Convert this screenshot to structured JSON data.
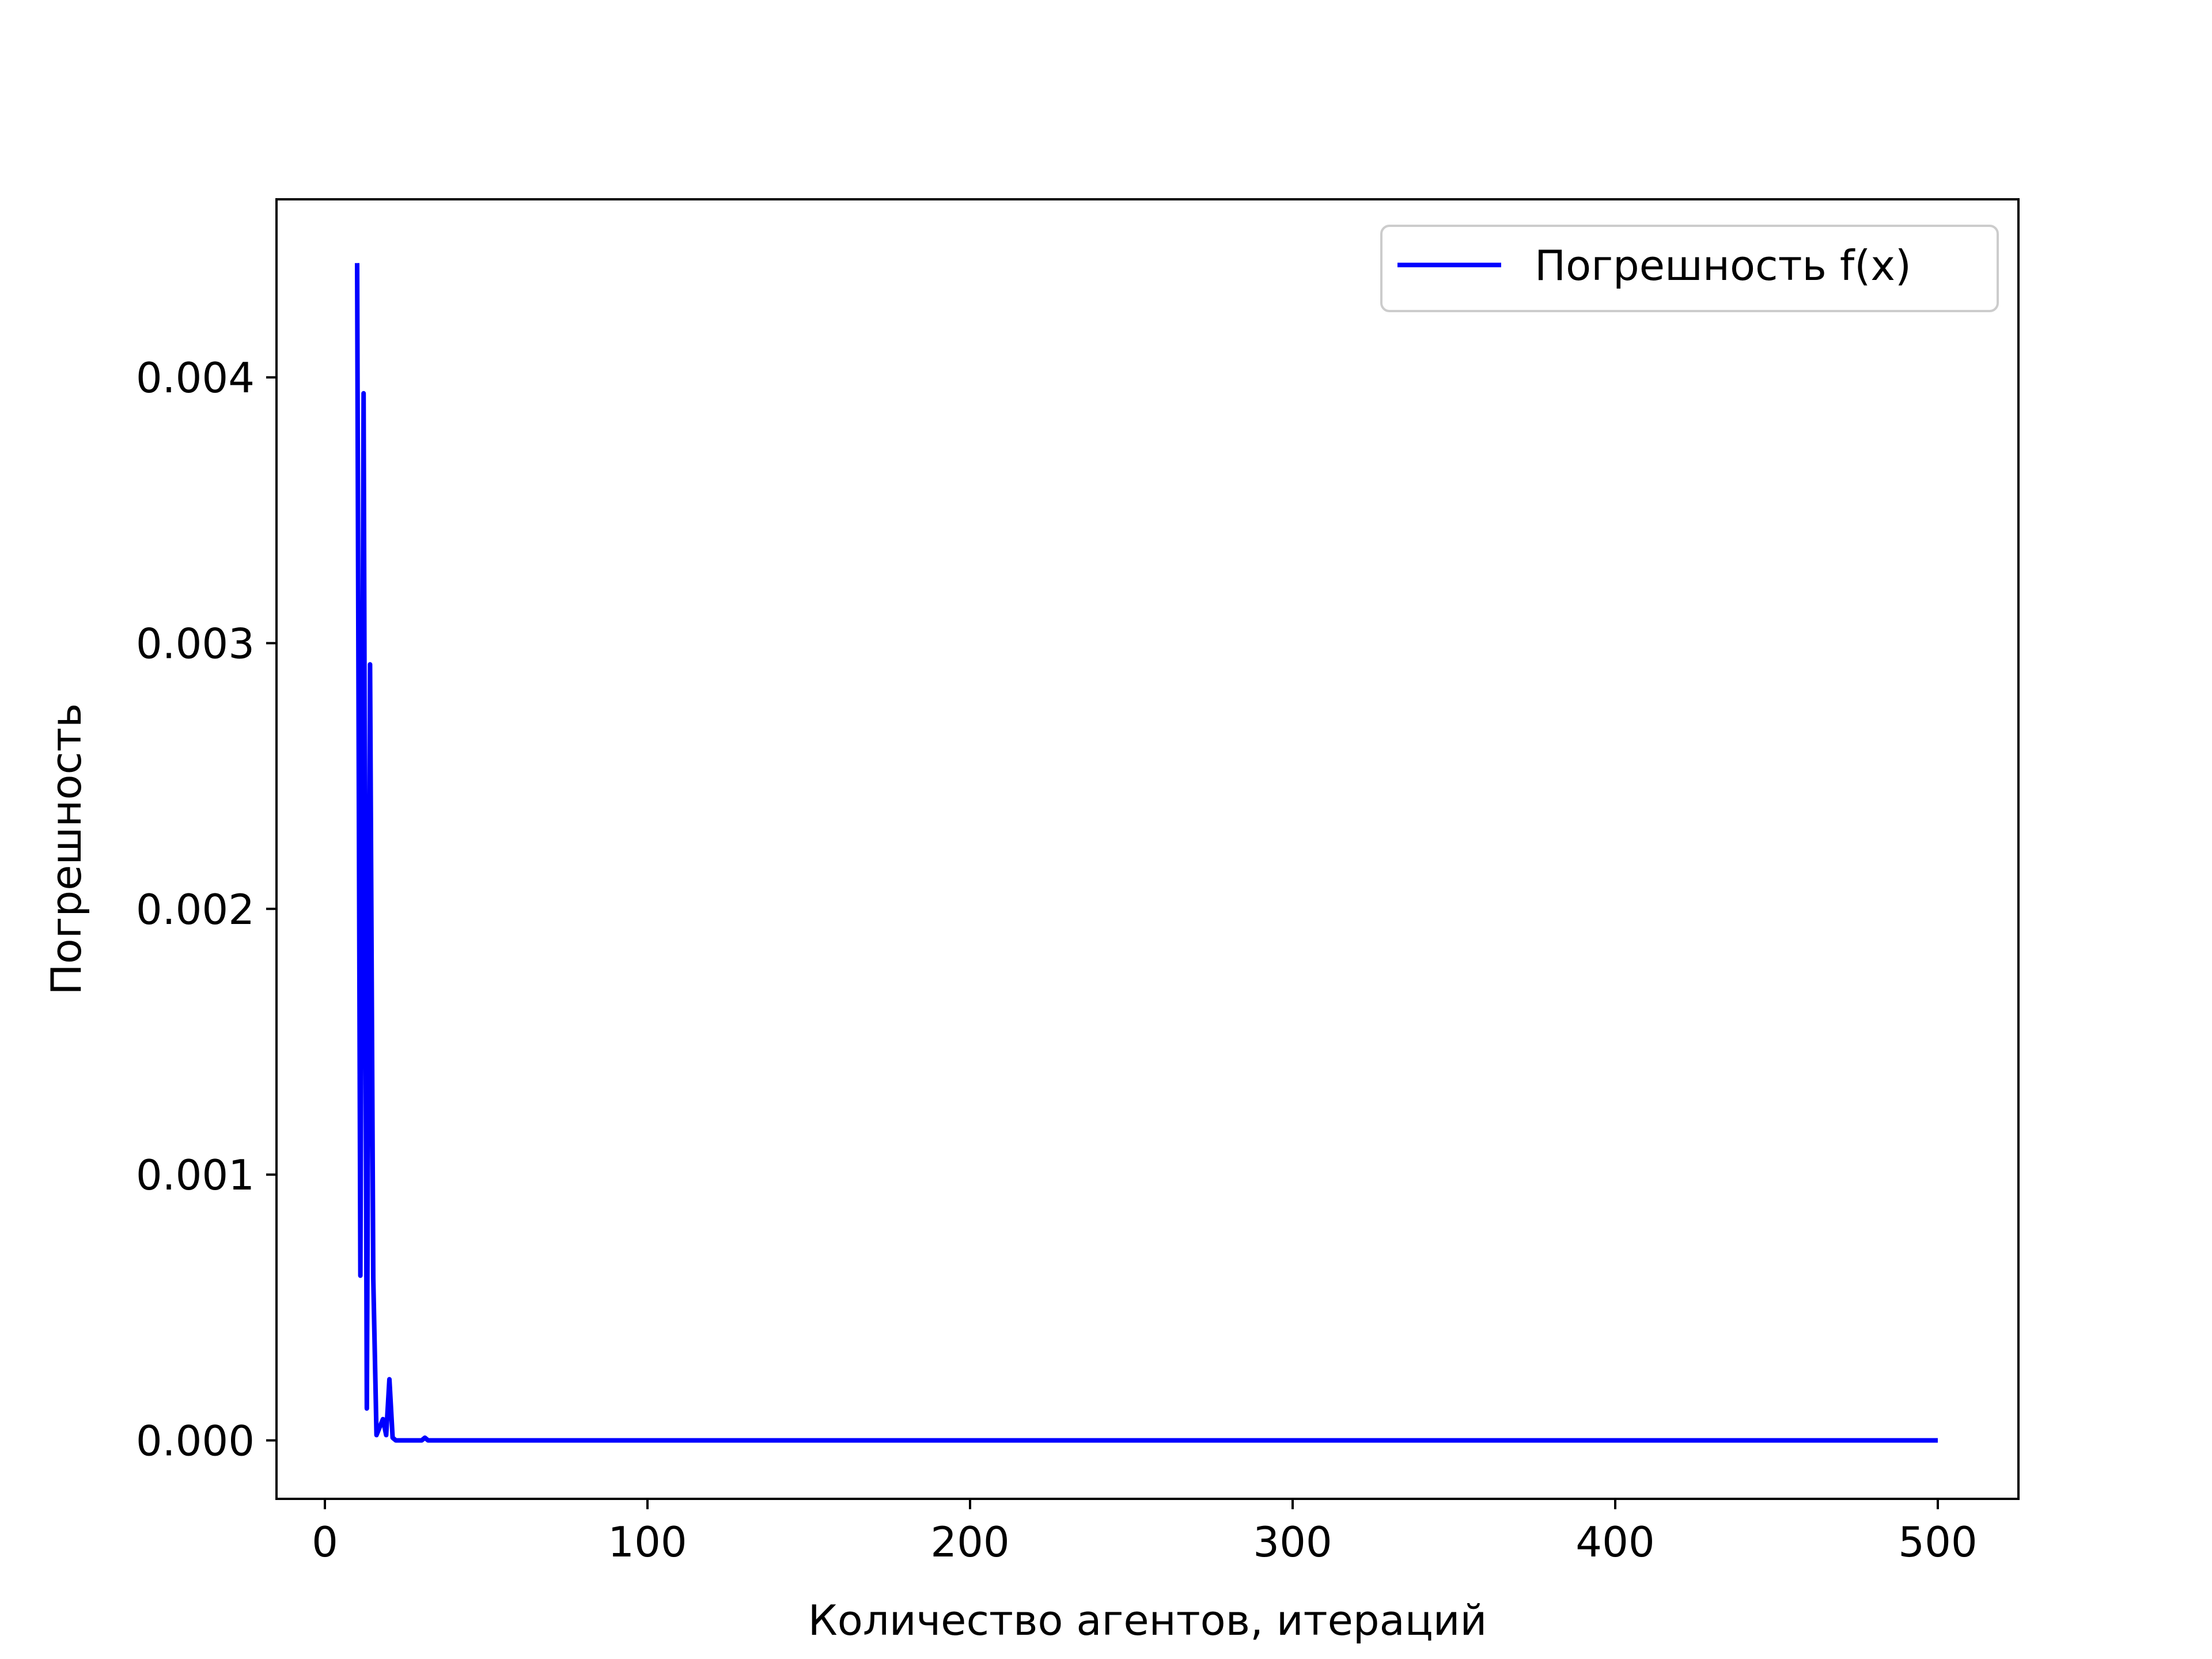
{
  "chart_data": {
    "type": "line",
    "title": "",
    "xlabel": "Количество агентов, итераций",
    "ylabel": "Погрешность",
    "xlim": [
      -15,
      525
    ],
    "ylim": [
      -0.00022,
      0.00467
    ],
    "x_ticks": [
      0,
      100,
      200,
      300,
      400,
      500
    ],
    "x_tick_labels": [
      "0",
      "100",
      "200",
      "300",
      "400",
      "500"
    ],
    "y_ticks": [
      0.0,
      0.001,
      0.002,
      0.003,
      0.004
    ],
    "y_tick_labels": [
      "0.000",
      "0.001",
      "0.002",
      "0.003",
      "0.004"
    ],
    "grid": false,
    "legend": {
      "position": "upper right",
      "entries": [
        "Погрешность f(x)"
      ]
    },
    "series": [
      {
        "name": "Погрешность f(x)",
        "color": "#0000ff",
        "x": [
          10,
          11,
          12,
          13,
          14,
          15,
          16,
          17,
          18,
          19,
          20,
          21,
          22,
          23,
          24,
          25,
          26,
          27,
          28,
          29,
          30,
          31,
          32,
          33,
          40,
          60,
          100,
          200,
          300,
          400,
          500
        ],
        "y": [
          0.00443,
          0.00062,
          0.00394,
          0.00012,
          0.00292,
          0.00061,
          2e-05,
          5e-05,
          8e-05,
          2e-05,
          0.00023,
          1e-05,
          0.0,
          0.0,
          0.0,
          0.0,
          0.0,
          0.0,
          0.0,
          0.0,
          0.0,
          1e-05,
          0.0,
          0.0,
          0.0,
          0.0,
          0.0,
          0.0,
          0.0,
          0.0,
          0.0
        ]
      }
    ]
  }
}
